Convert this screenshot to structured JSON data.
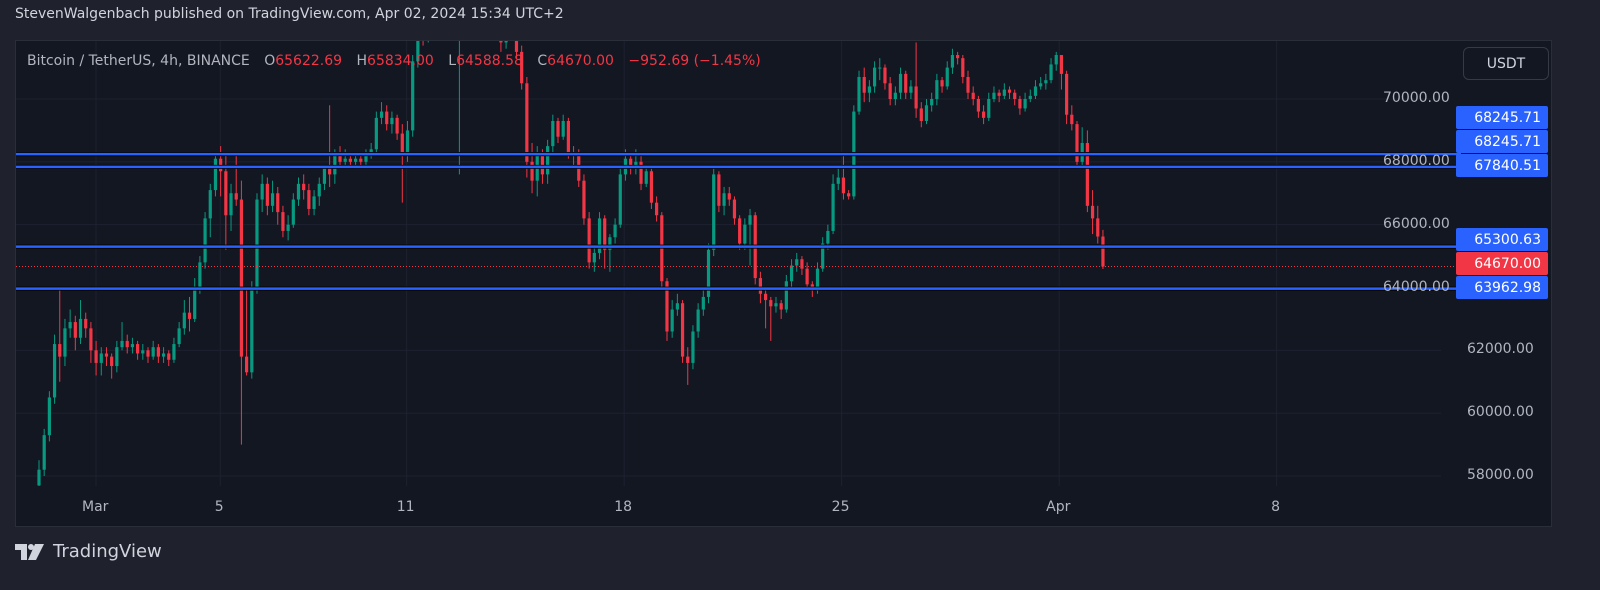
{
  "header": {
    "text": "StevenWalgenbach published on TradingView.com, Apr 02, 2024 15:34 UTC+2"
  },
  "legend": {
    "symbol": "Bitcoin / TetherUS, 4h, BINANCE",
    "open_label": "O",
    "open": "65622.69",
    "high_label": "H",
    "high": "65834.00",
    "low_label": "L",
    "low": "64588.58",
    "close_label": "C",
    "close": "64670.00",
    "change": "−952.69 (−1.45%)"
  },
  "currency_button": "USDT",
  "footer": {
    "brand": "TradingView"
  },
  "colors": {
    "up": "#089981",
    "down": "#f23645",
    "level_line": "#2962ff",
    "last_price": "#f23645",
    "background": "#131722"
  },
  "chart_data": {
    "type": "candlestick",
    "interval": "4h",
    "x_start": "2024-02-28 04:00",
    "x_ticks": [
      {
        "label": "Mar",
        "day": 1
      },
      {
        "label": "5",
        "day": 5
      },
      {
        "label": "11",
        "day": 11
      },
      {
        "label": "18",
        "day": 18
      },
      {
        "label": "25",
        "day": 25
      },
      {
        "label": "Apr",
        "day": 32
      },
      {
        "label": "8",
        "day": 39
      }
    ],
    "y_ticks": [
      "58000.00",
      "60000.00",
      "62000.00",
      "64000.00",
      "66000.00",
      "68000.00",
      "70000.00"
    ],
    "ylim": [
      57400,
      71850
    ],
    "grid": true,
    "horizontal_levels": [
      {
        "value": 68245.71,
        "label": "68245.71"
      },
      {
        "value": 68245.71,
        "label": "68245.71"
      },
      {
        "value": 67840.51,
        "label": "67840.51"
      },
      {
        "value": 65300.63,
        "label": "65300.63"
      },
      {
        "value": 63962.98,
        "label": "63962.98"
      }
    ],
    "last_price": {
      "value": 64670.0,
      "label": "64670.00"
    },
    "candles_ohlc": [
      [
        57700,
        58500,
        57600,
        58200
      ],
      [
        58200,
        59500,
        58000,
        59300
      ],
      [
        59300,
        60700,
        59100,
        60500
      ],
      [
        60500,
        62500,
        60300,
        62200
      ],
      [
        62200,
        63962,
        61000,
        61800
      ],
      [
        61800,
        63000,
        61500,
        62700
      ],
      [
        62700,
        63300,
        62400,
        62900
      ],
      [
        62900,
        63100,
        62000,
        62400
      ],
      [
        62400,
        63600,
        62200,
        63000
      ],
      [
        63000,
        63200,
        62400,
        62700
      ],
      [
        62700,
        62900,
        61600,
        62000
      ],
      [
        62000,
        62300,
        61200,
        61600
      ],
      [
        61600,
        62100,
        61200,
        61900
      ],
      [
        61900,
        62100,
        61500,
        61800
      ],
      [
        61800,
        61900,
        61100,
        61500
      ],
      [
        61500,
        62300,
        61300,
        62100
      ],
      [
        62100,
        62900,
        62000,
        62300
      ],
      [
        62300,
        62500,
        61900,
        62100
      ],
      [
        62100,
        62400,
        61900,
        62200
      ],
      [
        62200,
        62300,
        61700,
        61900
      ],
      [
        61900,
        62200,
        61700,
        62000
      ],
      [
        62000,
        62100,
        61600,
        61800
      ],
      [
        61800,
        62300,
        61700,
        62100
      ],
      [
        62100,
        62200,
        61600,
        61800
      ],
      [
        61800,
        62100,
        61600,
        61900
      ],
      [
        61900,
        62000,
        61500,
        61700
      ],
      [
        61700,
        62400,
        61600,
        62200
      ],
      [
        62200,
        62900,
        62100,
        62700
      ],
      [
        62700,
        63600,
        62500,
        63200
      ],
      [
        63200,
        63700,
        62600,
        63000
      ],
      [
        63000,
        64300,
        62900,
        64000
      ],
      [
        64000,
        65000,
        63800,
        64800
      ],
      [
        64800,
        66400,
        64600,
        66200
      ],
      [
        66200,
        67300,
        65600,
        67100
      ],
      [
        67100,
        68300,
        66900,
        68100
      ],
      [
        68100,
        68500,
        66900,
        67700
      ],
      [
        67700,
        68300,
        65200,
        66300
      ],
      [
        66300,
        67300,
        65800,
        67000
      ],
      [
        67000,
        68200,
        66600,
        66800
      ],
      [
        66800,
        67400,
        59000,
        61800
      ],
      [
        61800,
        64000,
        61200,
        61300
      ],
      [
        61300,
        64200,
        61100,
        64000
      ],
      [
        64000,
        67000,
        63800,
        66800
      ],
      [
        66800,
        67600,
        66400,
        67300
      ],
      [
        67300,
        67500,
        66300,
        66600
      ],
      [
        66600,
        67400,
        66400,
        67000
      ],
      [
        67000,
        67200,
        66000,
        66400
      ],
      [
        66400,
        66600,
        65600,
        65800
      ],
      [
        65800,
        66300,
        65500,
        66000
      ],
      [
        66000,
        67000,
        65900,
        66800
      ],
      [
        66800,
        67500,
        66600,
        67300
      ],
      [
        67300,
        67600,
        66800,
        67100
      ],
      [
        67100,
        67300,
        66300,
        66500
      ],
      [
        66500,
        67100,
        66300,
        66900
      ],
      [
        66900,
        67500,
        66600,
        67300
      ],
      [
        67300,
        67900,
        67100,
        67800
      ],
      [
        67800,
        69800,
        67200,
        67600
      ],
      [
        67600,
        68400,
        67300,
        68300
      ],
      [
        68300,
        68500,
        67800,
        68000
      ],
      [
        68000,
        68400,
        67900,
        68100
      ],
      [
        68100,
        68300,
        67800,
        68000
      ],
      [
        68000,
        68300,
        67900,
        68100
      ],
      [
        68100,
        68200,
        67800,
        68000
      ],
      [
        68000,
        68400,
        67900,
        68300
      ],
      [
        68300,
        68600,
        68100,
        68400
      ],
      [
        68400,
        69600,
        68300,
        69400
      ],
      [
        69400,
        69900,
        69200,
        69600
      ],
      [
        69600,
        69800,
        69000,
        69200
      ],
      [
        69200,
        69600,
        68900,
        69400
      ],
      [
        69400,
        69500,
        68700,
        68900
      ],
      [
        68900,
        69200,
        66700,
        68200
      ],
      [
        68200,
        69300,
        68000,
        69000
      ],
      [
        69000,
        71400,
        68800,
        71200
      ],
      [
        71200,
        72600,
        71000,
        72300
      ],
      [
        72300,
        72600,
        71700,
        72000
      ],
      [
        72000,
        72800,
        71800,
        72600
      ],
      [
        72600,
        73000,
        72300,
        72800
      ],
      [
        72800,
        73000,
        72200,
        72500
      ],
      [
        72500,
        73100,
        72300,
        72900
      ],
      [
        72900,
        73000,
        72400,
        72600
      ],
      [
        72600,
        72800,
        72100,
        72400
      ],
      [
        72400,
        72900,
        67600,
        72700
      ],
      [
        72700,
        72900,
        72000,
        72300
      ],
      [
        72300,
        73100,
        72100,
        72900
      ],
      [
        72900,
        73000,
        72400,
        72600
      ],
      [
        72600,
        73200,
        72400,
        73000
      ],
      [
        73000,
        73200,
        72600,
        72800
      ],
      [
        72800,
        72900,
        72300,
        72600
      ],
      [
        72600,
        72700,
        72000,
        72300
      ],
      [
        72300,
        72400,
        71500,
        71800
      ],
      [
        71800,
        72700,
        71600,
        72500
      ],
      [
        72500,
        73000,
        72300,
        72800
      ],
      [
        72800,
        72900,
        71300,
        71500
      ],
      [
        71500,
        71700,
        70300,
        70500
      ],
      [
        70500,
        70700,
        67500,
        68000
      ],
      [
        68000,
        68600,
        67000,
        67400
      ],
      [
        67400,
        68500,
        66900,
        68200
      ],
      [
        68200,
        68400,
        67300,
        67600
      ],
      [
        67600,
        68700,
        67300,
        68500
      ],
      [
        68500,
        69500,
        68300,
        69300
      ],
      [
        69300,
        69400,
        68600,
        68800
      ],
      [
        68800,
        69500,
        68700,
        69300
      ],
      [
        69300,
        69400,
        68100,
        68300
      ],
      [
        68300,
        68500,
        67900,
        68200
      ],
      [
        68200,
        68400,
        67200,
        67400
      ],
      [
        67400,
        67600,
        66000,
        66200
      ],
      [
        66200,
        66400,
        64600,
        64800
      ],
      [
        64800,
        65300,
        64500,
        65100
      ],
      [
        65100,
        66400,
        64900,
        66200
      ],
      [
        66200,
        66300,
        64600,
        65200
      ],
      [
        65200,
        65700,
        64500,
        65600
      ],
      [
        65600,
        66200,
        65400,
        66000
      ],
      [
        66000,
        67800,
        65900,
        67600
      ],
      [
        67600,
        68400,
        67400,
        68100
      ],
      [
        68100,
        68300,
        67600,
        67800
      ],
      [
        67800,
        68400,
        67600,
        68000
      ],
      [
        68000,
        68200,
        67100,
        67300
      ],
      [
        67300,
        67900,
        67200,
        67700
      ],
      [
        67700,
        67800,
        66500,
        66700
      ],
      [
        66700,
        66900,
        66100,
        66300
      ],
      [
        66300,
        66400,
        64000,
        64200
      ],
      [
        64200,
        64300,
        62300,
        62600
      ],
      [
        62600,
        63600,
        62400,
        63300
      ],
      [
        63300,
        63800,
        63100,
        63500
      ],
      [
        63500,
        63600,
        61600,
        61800
      ],
      [
        61800,
        62100,
        60900,
        61600
      ],
      [
        61600,
        62800,
        61400,
        62600
      ],
      [
        62600,
        63500,
        62400,
        63300
      ],
      [
        63300,
        64000,
        63100,
        63700
      ],
      [
        63700,
        65400,
        63500,
        65200
      ],
      [
        65200,
        67800,
        65000,
        67600
      ],
      [
        67600,
        67700,
        66400,
        66600
      ],
      [
        66600,
        67200,
        66300,
        67000
      ],
      [
        67000,
        67200,
        66600,
        66800
      ],
      [
        66800,
        66900,
        66000,
        66200
      ],
      [
        66200,
        66300,
        65200,
        65400
      ],
      [
        65400,
        66200,
        65200,
        66000
      ],
      [
        66000,
        66500,
        64700,
        66300
      ],
      [
        66300,
        66400,
        64100,
        64300
      ],
      [
        64300,
        64500,
        63500,
        63800
      ],
      [
        63800,
        64000,
        62700,
        63600
      ],
      [
        63600,
        63700,
        62300,
        63400
      ],
      [
        63400,
        63700,
        63200,
        63500
      ],
      [
        63500,
        63600,
        63000,
        63300
      ],
      [
        63300,
        64400,
        63200,
        64200
      ],
      [
        64200,
        64900,
        64000,
        64700
      ],
      [
        64700,
        65100,
        64500,
        64900
      ],
      [
        64900,
        65000,
        64400,
        64600
      ],
      [
        64600,
        64800,
        63900,
        64100
      ],
      [
        64100,
        64200,
        63700,
        63900
      ],
      [
        63900,
        64800,
        63800,
        64600
      ],
      [
        64600,
        65600,
        64500,
        65400
      ],
      [
        65400,
        66000,
        65200,
        65800
      ],
      [
        65800,
        67600,
        65700,
        67300
      ],
      [
        67300,
        67900,
        67100,
        67500
      ],
      [
        67500,
        68300,
        66800,
        67000
      ],
      [
        67000,
        67100,
        66800,
        66900
      ],
      [
        66900,
        69800,
        66800,
        69600
      ],
      [
        69600,
        70900,
        69500,
        70700
      ],
      [
        70700,
        71000,
        69900,
        70200
      ],
      [
        70200,
        70600,
        69900,
        70400
      ],
      [
        70400,
        71200,
        70200,
        71000
      ],
      [
        71000,
        71300,
        70600,
        71000
      ],
      [
        71000,
        71100,
        70300,
        70500
      ],
      [
        70500,
        70700,
        69800,
        70000
      ],
      [
        70000,
        70400,
        69800,
        70200
      ],
      [
        70200,
        71000,
        70000,
        70800
      ],
      [
        70800,
        70900,
        70000,
        70200
      ],
      [
        70200,
        70600,
        70000,
        70400
      ],
      [
        70400,
        71800,
        69400,
        69700
      ],
      [
        69700,
        69900,
        69100,
        69300
      ],
      [
        69300,
        70000,
        69200,
        69800
      ],
      [
        69800,
        70200,
        69600,
        70000
      ],
      [
        70000,
        70800,
        69800,
        70600
      ],
      [
        70600,
        70700,
        70200,
        70400
      ],
      [
        70400,
        71200,
        70300,
        71000
      ],
      [
        71000,
        71600,
        70800,
        71400
      ],
      [
        71400,
        71500,
        71100,
        71300
      ],
      [
        71300,
        71400,
        70500,
        70700
      ],
      [
        70700,
        70900,
        70000,
        70200
      ],
      [
        70200,
        70400,
        69800,
        70000
      ],
      [
        70000,
        70100,
        69400,
        69600
      ],
      [
        69600,
        69800,
        69200,
        69400
      ],
      [
        69400,
        70200,
        69300,
        70000
      ],
      [
        70000,
        70400,
        69900,
        70200
      ],
      [
        70200,
        70300,
        69900,
        70100
      ],
      [
        70100,
        70500,
        70000,
        70300
      ],
      [
        70300,
        70400,
        70000,
        70200
      ],
      [
        70200,
        70300,
        69800,
        70000
      ],
      [
        70000,
        70100,
        69500,
        69700
      ],
      [
        69700,
        70200,
        69600,
        70000
      ],
      [
        70000,
        70300,
        69900,
        70100
      ],
      [
        70100,
        70600,
        70000,
        70400
      ],
      [
        70400,
        70700,
        70300,
        70500
      ],
      [
        70500,
        70800,
        70300,
        70600
      ],
      [
        70600,
        71300,
        70500,
        71100
      ],
      [
        71100,
        71500,
        70900,
        71400
      ],
      [
        71400,
        71400,
        70300,
        70800
      ],
      [
        70800,
        70900,
        69200,
        69500
      ],
      [
        69500,
        69800,
        69000,
        69200
      ],
      [
        69200,
        69300,
        67800,
        68000
      ],
      [
        68000,
        69100,
        67800,
        68600
      ],
      [
        68600,
        69000,
        66400,
        66600
      ],
      [
        66600,
        67100,
        65700,
        66200
      ],
      [
        66200,
        66600,
        65400,
        65622.69
      ],
      [
        65622.69,
        65834,
        64588.58,
        64670
      ]
    ]
  }
}
